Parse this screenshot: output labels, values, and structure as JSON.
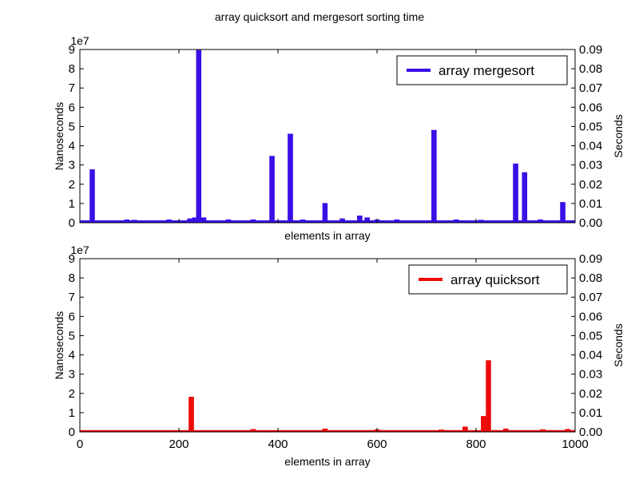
{
  "figure": {
    "title": "array quicksort and mergesort sorting time"
  },
  "colors": {
    "mergesort": "#3a0fe6",
    "quicksort": "#ee0a0a",
    "axis": "#000000"
  },
  "chart_data": [
    {
      "type": "line",
      "title": "array quicksort and mergesort sorting time",
      "xlabel": "elements in array",
      "ylabel": "Nanoseconds",
      "ylabel_right": "Seconds",
      "y_offset_label": "1e7",
      "xlim": [
        0,
        1000
      ],
      "ylim": [
        0,
        9
      ],
      "ylim_right": [
        0,
        0.09
      ],
      "x_ticks": [],
      "y_ticks": [
        "0",
        "1",
        "2",
        "3",
        "4",
        "5",
        "6",
        "7",
        "8",
        "9"
      ],
      "y_ticks_right": [
        "0.00",
        "0.01",
        "0.02",
        "0.03",
        "0.04",
        "0.05",
        "0.06",
        "0.07",
        "0.08",
        "0.09"
      ],
      "legend": {
        "position": "top-right"
      },
      "series": [
        {
          "name": "array mergesort",
          "baseline": 0.05,
          "spikes": [
            [
              25,
              2.7
            ],
            [
              95,
              0.1
            ],
            [
              110,
              0.08
            ],
            [
              180,
              0.1
            ],
            [
              222,
              0.15
            ],
            [
              232,
              0.2
            ],
            [
              240,
              8.9
            ],
            [
              250,
              0.2
            ],
            [
              300,
              0.1
            ],
            [
              350,
              0.1
            ],
            [
              388,
              3.4
            ],
            [
              425,
              4.55
            ],
            [
              450,
              0.1
            ],
            [
              495,
              0.95
            ],
            [
              530,
              0.15
            ],
            [
              565,
              0.3
            ],
            [
              580,
              0.2
            ],
            [
              600,
              0.1
            ],
            [
              640,
              0.1
            ],
            [
              715,
              4.75
            ],
            [
              760,
              0.1
            ],
            [
              810,
              0.08
            ],
            [
              880,
              3.0
            ],
            [
              898,
              2.55
            ],
            [
              930,
              0.1
            ],
            [
              975,
              1.0
            ]
          ]
        }
      ]
    },
    {
      "type": "line",
      "xlabel": "elements in array",
      "ylabel": "Nanoseconds",
      "ylabel_right": "Seconds",
      "y_offset_label": "1e7",
      "xlim": [
        0,
        1000
      ],
      "ylim": [
        0,
        9
      ],
      "ylim_right": [
        0,
        0.09
      ],
      "x_ticks": [
        "0",
        "200",
        "400",
        "600",
        "800",
        "1000"
      ],
      "y_ticks": [
        "0",
        "1",
        "2",
        "3",
        "4",
        "5",
        "6",
        "7",
        "8",
        "9"
      ],
      "y_ticks_right": [
        "0.00",
        "0.01",
        "0.02",
        "0.03",
        "0.04",
        "0.05",
        "0.06",
        "0.07",
        "0.08",
        "0.09"
      ],
      "legend": {
        "position": "top-right"
      },
      "series": [
        {
          "name": "array quicksort",
          "baseline": 0.02,
          "spikes": [
            [
              225,
              1.75
            ],
            [
              350,
              0.08
            ],
            [
              495,
              0.1
            ],
            [
              600,
              0.06
            ],
            [
              730,
              0.05
            ],
            [
              778,
              0.2
            ],
            [
              815,
              0.75
            ],
            [
              825,
              3.65
            ],
            [
              860,
              0.1
            ],
            [
              935,
              0.06
            ],
            [
              985,
              0.08
            ]
          ]
        }
      ]
    }
  ]
}
